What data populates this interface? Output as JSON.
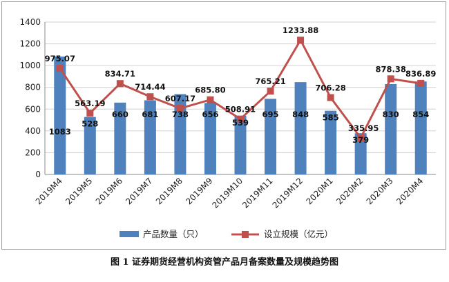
{
  "caption": "图 1 证券期货经营机构资管产品月备案数量及规模趋势图",
  "chart_data": {
    "type": "bar",
    "categories": [
      "2019M4",
      "2019M5",
      "2019M6",
      "2019M7",
      "2019M8",
      "2019M9",
      "2019M10",
      "2019M11",
      "2019M12",
      "2020M1",
      "2020M2",
      "2020M3",
      "2020M4"
    ],
    "ylim": [
      0,
      1400
    ],
    "yticks": [
      0,
      200,
      400,
      600,
      800,
      1000,
      1200,
      1400
    ],
    "grid": true,
    "legend_position": "bottom",
    "series": [
      {
        "name": "产品数量（只）",
        "type": "bar",
        "color": "#4f81bd",
        "values": [
          1083,
          528,
          660,
          681,
          738,
          656,
          539,
          695,
          848,
          585,
          379,
          830,
          854
        ],
        "labels": [
          "1083",
          "528",
          "660",
          "681",
          "738",
          "656",
          "539",
          "695",
          "848",
          "585",
          "379",
          "830",
          "854"
        ]
      },
      {
        "name": "设立规模（亿元）",
        "type": "line",
        "color": "#c0504d",
        "values": [
          975.07,
          563.19,
          834.71,
          714.44,
          607.17,
          685.8,
          508.91,
          765.21,
          1233.88,
          706.28,
          335.95,
          878.38,
          836.89
        ],
        "labels": [
          "975.07",
          "563.19",
          "834.71",
          "714.44",
          "607.17",
          "685.80",
          "508.91",
          "765.21",
          "1233.88",
          "706.28",
          "335.95",
          "878.38",
          "836.89"
        ]
      }
    ]
  }
}
